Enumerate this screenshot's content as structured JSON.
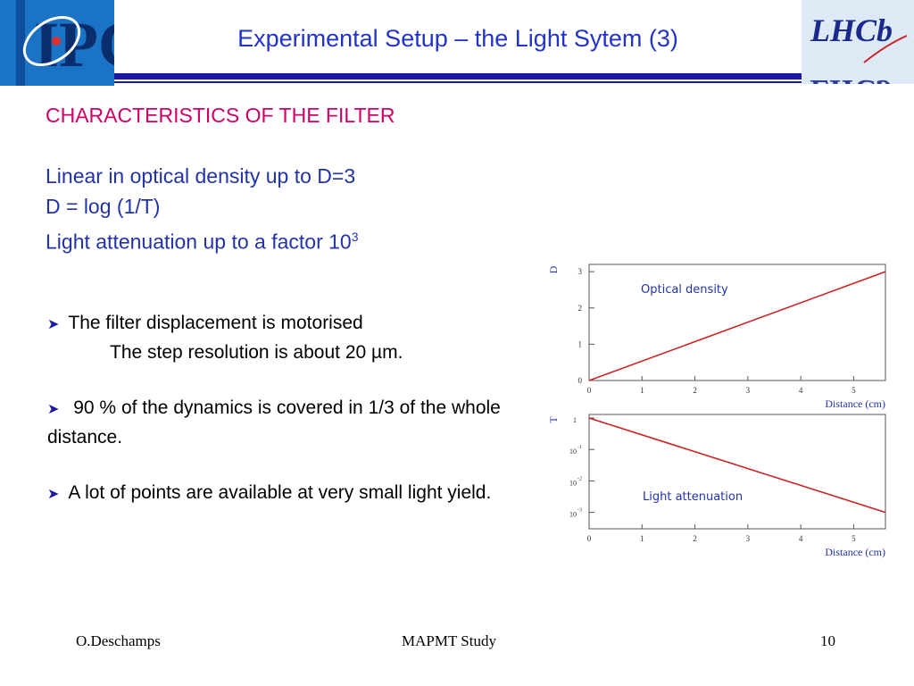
{
  "header": {
    "title": "Experimental Setup – the Light Sytem (3)",
    "logo_left_text": "IPC",
    "logo_right_text": "LHCb"
  },
  "content": {
    "heading": "CHARACTERISTICS OF THE FILTER",
    "intro_line1": "Linear in optical density up to D=3",
    "intro_line2": "D = log (1/T)",
    "intro_line3": "Light attenuation up to a factor  10",
    "intro_line3_sup": "3",
    "bullet1": "The filter displacement is motorised",
    "bullet1_sub": "The step resolution is about 20 µm.",
    "bullet2": " 90 % of the dynamics is covered in 1/3 of  the whole distance.",
    "bullet3": "A lot of points are available at very small light yield."
  },
  "chart_data": [
    {
      "type": "line",
      "ylabel": "D",
      "xlabel": "Distance (cm)",
      "annotation": "Optical density",
      "x_ticks": [
        "0",
        "1",
        "2",
        "3",
        "4",
        "5"
      ],
      "y_ticks": [
        "0",
        "1",
        "2",
        "3"
      ],
      "xlim": [
        0,
        5.6
      ],
      "ylim": [
        0,
        3.2
      ],
      "series": [
        {
          "x": [
            0,
            5.6
          ],
          "y": [
            0,
            3.0
          ]
        }
      ],
      "color": "#cc2222"
    },
    {
      "type": "line",
      "ylabel": "T",
      "xlabel": "Distance (cm)",
      "annotation": "Light attenuation",
      "y_scale": "log",
      "x_ticks": [
        "0",
        "1",
        "2",
        "3",
        "4",
        "5"
      ],
      "y_ticks": [
        {
          "base": "1",
          "exp": ""
        },
        {
          "base": "10",
          "exp": "-1"
        },
        {
          "base": "10",
          "exp": "-2"
        },
        {
          "base": "10",
          "exp": "-3"
        }
      ],
      "xlim": [
        0,
        5.6
      ],
      "ylim": [
        0.0003,
        1.3
      ],
      "series": [
        {
          "x": [
            0,
            5.6
          ],
          "y": [
            1,
            0.001
          ]
        }
      ],
      "color": "#cc2222"
    }
  ],
  "footer": {
    "author": "O.Deschamps",
    "project": "MAPMT Study",
    "page": "10"
  }
}
